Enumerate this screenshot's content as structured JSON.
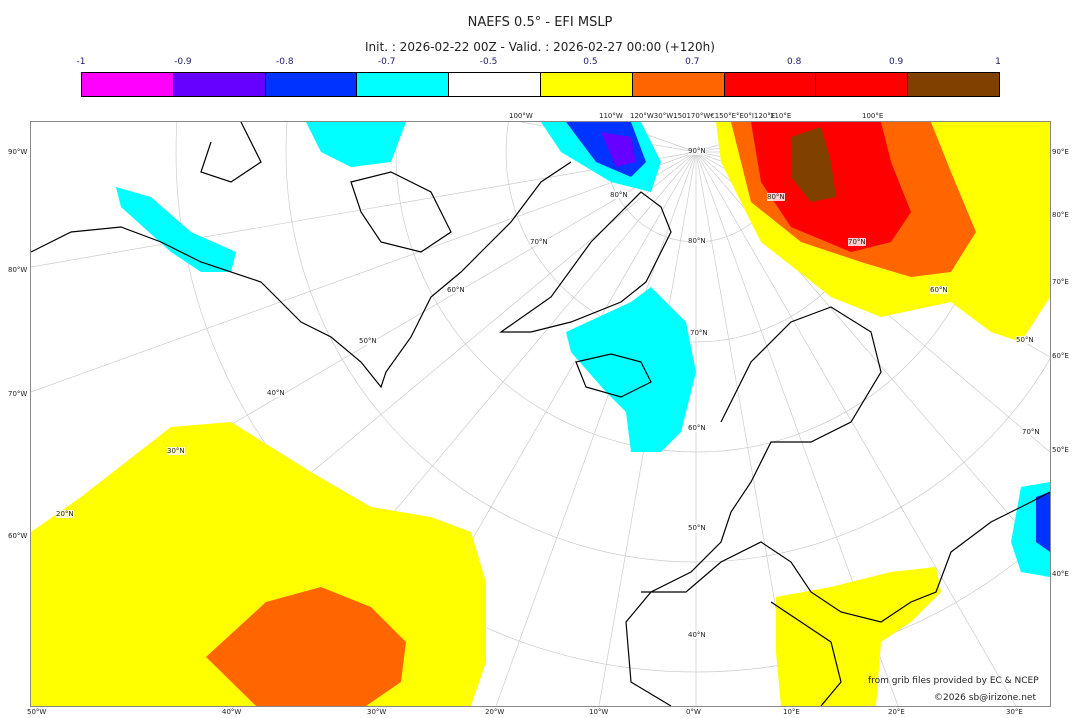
{
  "title": "NAEFS 0.5° - EFI MSLP",
  "subtitle": "Init. : 2026-02-22 00Z - Valid. : 2026-02-27 00:00 (+120h)",
  "colorbar": {
    "ticks": [
      "-1",
      "-0.9",
      "-0.8",
      "-0.7",
      "-0.5",
      "0.5",
      "0.7",
      "0.8",
      "0.9",
      "1"
    ],
    "colors": [
      "#ff00ff",
      "#6600ff",
      "#0033ff",
      "#00ffff",
      "#ffffff",
      "#ffff00",
      "#ff6600",
      "#ff0000",
      "#ff0000",
      "#804000"
    ]
  },
  "map": {
    "left_labels": [
      "90°W",
      "80°W",
      "70°W",
      "60°W"
    ],
    "bottom_labels": [
      "50°W",
      "40°W",
      "30°W",
      "20°W",
      "10°W",
      "0°W",
      "10°E",
      "20°E",
      "30°E"
    ],
    "right_labels": [
      "90°E",
      "80°E",
      "70°E",
      "60°E",
      "50°E",
      "40°E"
    ],
    "top_labels": [
      "100°W",
      "110°W",
      "120°W30°W150170°W€150°E°E0°I120°E",
      "110°E",
      "100°E"
    ],
    "lat_labels": [
      "90°N",
      "80°N",
      "80°N",
      "70°N",
      "70°N",
      "70°N",
      "60°N",
      "60°N",
      "60°N",
      "50°N",
      "50°N",
      "50°N",
      "40°N",
      "40°N",
      "30°N",
      "20°N",
      "80°N",
      "70°N"
    ]
  },
  "credits": {
    "line1": "from grib files provided by EC & NCEP",
    "line2": "©2026 sb@irizone.net"
  }
}
